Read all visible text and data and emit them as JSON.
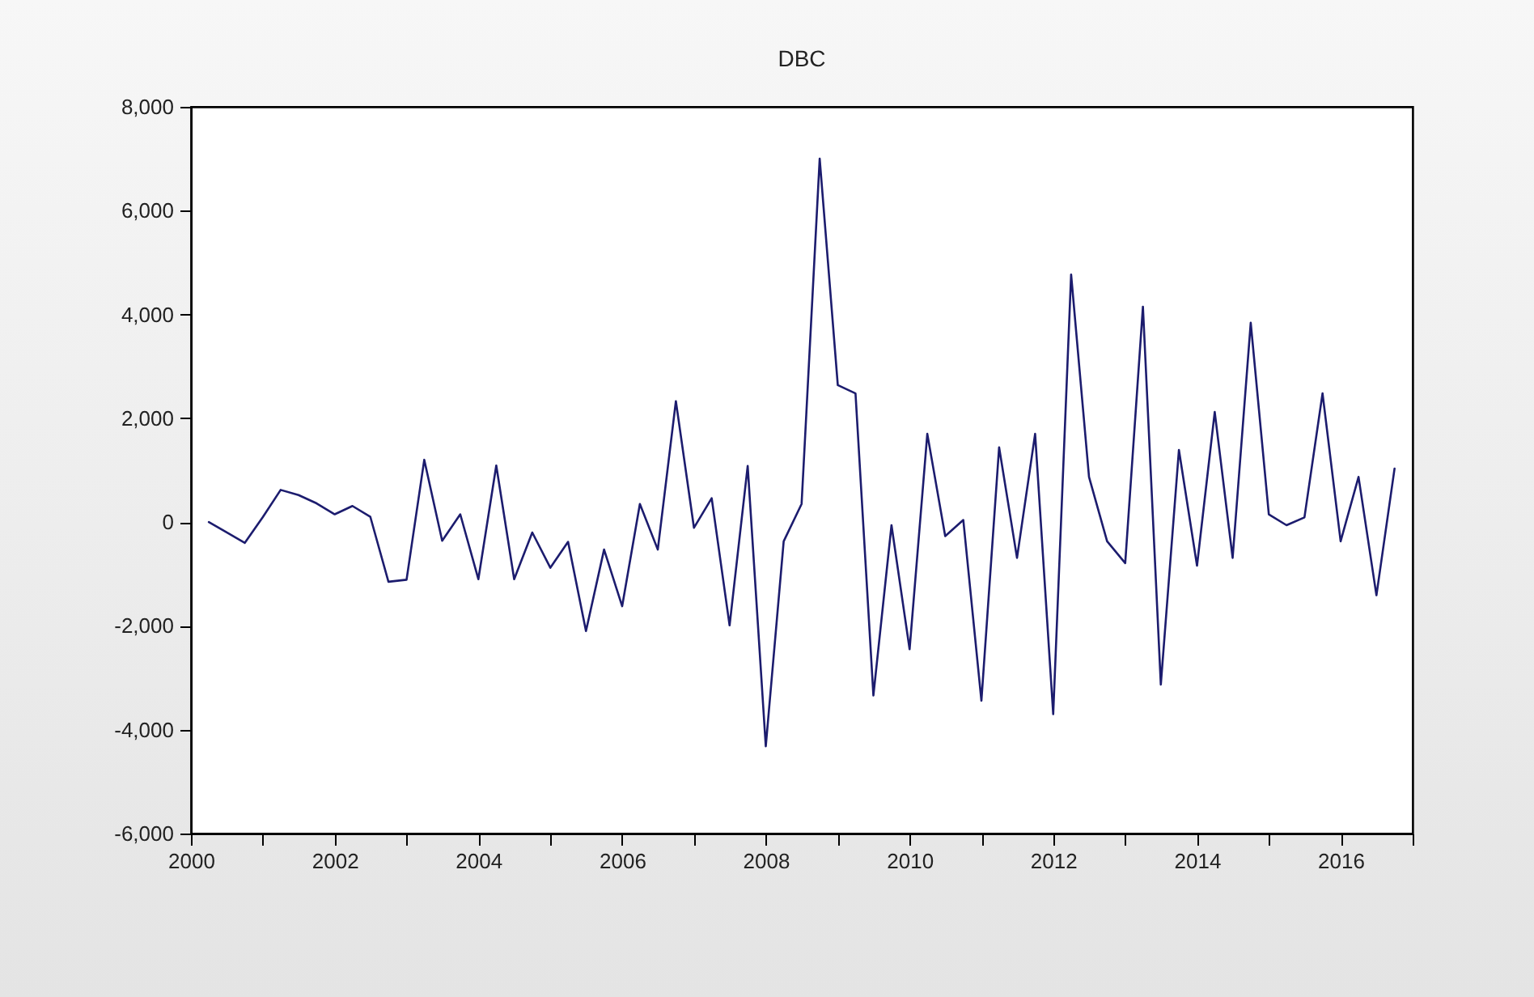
{
  "chart_data": {
    "type": "line",
    "title": "DBC",
    "x": [
      "2000-04",
      "2000-07",
      "2000-10",
      "2001-01",
      "2001-04",
      "2001-07",
      "2001-10",
      "2002-01",
      "2002-04",
      "2002-07",
      "2002-10",
      "2003-01",
      "2003-04",
      "2003-07",
      "2003-10",
      "2004-01",
      "2004-04",
      "2004-07",
      "2004-10",
      "2005-01",
      "2005-04",
      "2005-07",
      "2005-10",
      "2006-01",
      "2006-04",
      "2006-07",
      "2006-10",
      "2007-01",
      "2007-04",
      "2007-07",
      "2007-10",
      "2008-01",
      "2008-04",
      "2008-07",
      "2008-10",
      "2009-01",
      "2009-04",
      "2009-07",
      "2009-10",
      "2010-01",
      "2010-04",
      "2010-07",
      "2010-10",
      "2011-01",
      "2011-04",
      "2011-07",
      "2011-10",
      "2012-01",
      "2012-04",
      "2012-07",
      "2012-10",
      "2013-01",
      "2013-04",
      "2013-07",
      "2013-10",
      "2014-01",
      "2014-04",
      "2014-07",
      "2014-10",
      "2015-01",
      "2015-04",
      "2015-07",
      "2015-10",
      "2016-01",
      "2016-04",
      "2016-07",
      "2016-10"
    ],
    "series": [
      {
        "color": "#1c1c6e",
        "values": [
          0,
          -200,
          -400,
          100,
          620,
          520,
          360,
          150,
          310,
          100,
          -1150,
          -1110,
          1200,
          -360,
          150,
          -1100,
          1090,
          -1100,
          -200,
          -880,
          -380,
          -2100,
          -530,
          -1620,
          350,
          -530,
          2330,
          -110,
          460,
          -1990,
          1080,
          -4320,
          -370,
          350,
          7000,
          2640,
          2480,
          -3340,
          -60,
          -2450,
          1700,
          -270,
          40,
          -3440,
          1440,
          -690,
          1700,
          -3700,
          4770,
          870,
          -370,
          -790,
          4150,
          -3130,
          1390,
          -840,
          2120,
          -690,
          3840,
          150,
          -60,
          90,
          2480,
          -370,
          870,
          -1410,
          1030
        ]
      }
    ],
    "xlim": [
      "2000",
      "2017"
    ],
    "xticks": [
      {
        "value": "2000",
        "label": "2000"
      },
      {
        "value": "2001",
        "label": null
      },
      {
        "value": "2002",
        "label": "2002"
      },
      {
        "value": "2003",
        "label": null
      },
      {
        "value": "2004",
        "label": "2004"
      },
      {
        "value": "2005",
        "label": null
      },
      {
        "value": "2006",
        "label": "2006"
      },
      {
        "value": "2007",
        "label": null
      },
      {
        "value": "2008",
        "label": "2008"
      },
      {
        "value": "2009",
        "label": null
      },
      {
        "value": "2010",
        "label": "2010"
      },
      {
        "value": "2011",
        "label": null
      },
      {
        "value": "2012",
        "label": "2012"
      },
      {
        "value": "2013",
        "label": null
      },
      {
        "value": "2014",
        "label": "2014"
      },
      {
        "value": "2015",
        "label": null
      },
      {
        "value": "2016",
        "label": "2016"
      },
      {
        "value": "2017",
        "label": null
      }
    ],
    "ylim": [
      -6000,
      8000
    ],
    "yticks": [
      {
        "value": -6000,
        "label": "-6,000"
      },
      {
        "value": -4000,
        "label": "-4,000"
      },
      {
        "value": -2000,
        "label": "-2,000"
      },
      0,
      {
        "value": 2000,
        "label": "2,000"
      },
      {
        "value": 4000,
        "label": "4,000"
      },
      {
        "value": 6000,
        "label": "6,000"
      },
      {
        "value": 8000,
        "label": "8,000"
      }
    ],
    "grid": false,
    "marker": "none",
    "line_style": "solid"
  }
}
